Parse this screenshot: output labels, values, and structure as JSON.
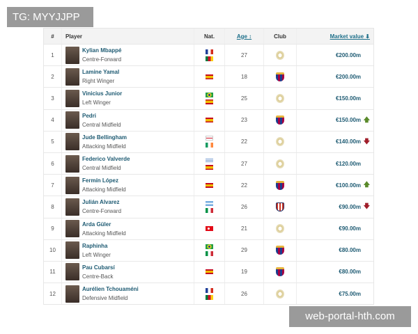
{
  "watermarks": {
    "top_left": "TG: MYYJJPP",
    "bottom_right": "web-portal-hth.com"
  },
  "header": {
    "num": "#",
    "player": "Player",
    "nat": "Nat.",
    "age": "Age ↕",
    "club": "Club",
    "market_value": "Market value ⬇"
  },
  "colors": {
    "link": "#1d5a72",
    "up": "#5a8a2a",
    "down": "#a01e2a"
  },
  "rows": [
    {
      "n": "1",
      "name": "Kylian Mbappé",
      "pos": "Centre-Forward",
      "nat": [
        "france",
        "cameroon"
      ],
      "age": "27",
      "club": "real-madrid",
      "mv": "€200.00m",
      "trend": ""
    },
    {
      "n": "2",
      "name": "Lamine Yamal",
      "pos": "Right Winger",
      "nat": [
        "spain"
      ],
      "age": "18",
      "club": "barcelona",
      "mv": "€200.00m",
      "trend": ""
    },
    {
      "n": "3",
      "name": "Vinicius Junior",
      "pos": "Left Winger",
      "nat": [
        "brazil",
        "spain"
      ],
      "age": "25",
      "club": "real-madrid",
      "mv": "€150.00m",
      "trend": ""
    },
    {
      "n": "4",
      "name": "Pedri",
      "pos": "Central Midfield",
      "nat": [
        "spain"
      ],
      "age": "23",
      "club": "barcelona",
      "mv": "€150.00m",
      "trend": "up"
    },
    {
      "n": "5",
      "name": "Jude Bellingham",
      "pos": "Attacking Midfield",
      "nat": [
        "england",
        "ireland"
      ],
      "age": "22",
      "club": "real-madrid",
      "mv": "€140.00m",
      "trend": "down"
    },
    {
      "n": "6",
      "name": "Federico Valverde",
      "pos": "Central Midfield",
      "nat": [
        "uruguay",
        "spain"
      ],
      "age": "27",
      "club": "real-madrid",
      "mv": "€120.00m",
      "trend": ""
    },
    {
      "n": "7",
      "name": "Fermín López",
      "pos": "Attacking Midfield",
      "nat": [
        "spain"
      ],
      "age": "22",
      "club": "barcelona",
      "mv": "€100.00m",
      "trend": "up"
    },
    {
      "n": "8",
      "name": "Julián Alvarez",
      "pos": "Centre-Forward",
      "nat": [
        "argentina",
        "italy"
      ],
      "age": "26",
      "club": "atletico-madrid",
      "mv": "€90.00m",
      "trend": "down"
    },
    {
      "n": "9",
      "name": "Arda Güler",
      "pos": "Attacking Midfield",
      "nat": [
        "turkey"
      ],
      "age": "21",
      "club": "real-madrid",
      "mv": "€90.00m",
      "trend": ""
    },
    {
      "n": "10",
      "name": "Raphinha",
      "pos": "Left Winger",
      "nat": [
        "brazil",
        "italy"
      ],
      "age": "29",
      "club": "barcelona",
      "mv": "€80.00m",
      "trend": ""
    },
    {
      "n": "11",
      "name": "Pau Cubarsí",
      "pos": "Centre-Back",
      "nat": [
        "spain"
      ],
      "age": "19",
      "club": "barcelona",
      "mv": "€80.00m",
      "trend": ""
    },
    {
      "n": "12",
      "name": "Aurélien Tchouaméni",
      "pos": "Defensive Midfield",
      "nat": [
        "france",
        "cameroon"
      ],
      "age": "26",
      "club": "real-madrid",
      "mv": "€75.00m",
      "trend": ""
    }
  ]
}
